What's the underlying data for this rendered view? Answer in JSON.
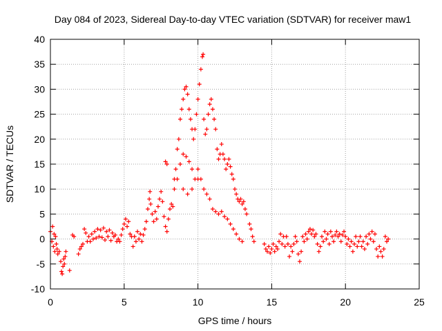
{
  "chart_data": {
    "type": "scatter",
    "title": "Day 084 of 2023, Sidereal Day-to-day VTEC variation (SDTVAR) for receiver maw1",
    "xlabel": "GPS time / hours",
    "ylabel": "SDTVAR / TECUs",
    "xlim": [
      0,
      25
    ],
    "ylim": [
      -10,
      40
    ],
    "xticks": [
      0,
      5,
      10,
      15,
      20,
      25
    ],
    "yticks": [
      -10,
      -5,
      0,
      5,
      10,
      15,
      20,
      25,
      30,
      35,
      40
    ],
    "grid": true,
    "marker": "+",
    "series": [
      {
        "name": "SDTVAR",
        "color": "#ff0000",
        "points": [
          [
            0.0,
            1.5
          ],
          [
            0.1,
            -0.5
          ],
          [
            0.15,
            2.5
          ],
          [
            0.2,
            -1.5
          ],
          [
            0.25,
            1.0
          ],
          [
            0.3,
            -2.5
          ],
          [
            0.35,
            0.5
          ],
          [
            0.4,
            -1.0
          ],
          [
            0.45,
            -2.0
          ],
          [
            0.5,
            -3.0
          ],
          [
            0.6,
            -2.5
          ],
          [
            0.7,
            -4.5
          ],
          [
            0.75,
            -6.5
          ],
          [
            0.8,
            -7.0
          ],
          [
            0.85,
            -5.5
          ],
          [
            0.9,
            -4.0
          ],
          [
            0.95,
            -5.0
          ],
          [
            1.0,
            -3.5
          ],
          [
            1.05,
            -2.5
          ],
          [
            1.3,
            -6.3
          ],
          [
            1.5,
            0.8
          ],
          [
            1.6,
            0.5
          ],
          [
            1.9,
            -3.0
          ],
          [
            2.0,
            -2.0
          ],
          [
            2.1,
            -1.5
          ],
          [
            2.2,
            -1.0
          ],
          [
            2.3,
            2.0
          ],
          [
            2.4,
            1.2
          ],
          [
            2.5,
            -0.5
          ],
          [
            2.6,
            0.5
          ],
          [
            2.7,
            -0.5
          ],
          [
            2.8,
            1.0
          ],
          [
            2.9,
            0.0
          ],
          [
            3.0,
            1.5
          ],
          [
            3.1,
            0.2
          ],
          [
            3.2,
            2.0
          ],
          [
            3.3,
            0.5
          ],
          [
            3.4,
            1.8
          ],
          [
            3.5,
            0.3
          ],
          [
            3.6,
            2.2
          ],
          [
            3.7,
            -0.2
          ],
          [
            3.8,
            1.5
          ],
          [
            3.9,
            0.5
          ],
          [
            4.0,
            1.8
          ],
          [
            4.1,
            -0.3
          ],
          [
            4.2,
            1.2
          ],
          [
            4.3,
            0.5
          ],
          [
            4.4,
            0.8
          ],
          [
            4.5,
            -0.5
          ],
          [
            4.6,
            0.0
          ],
          [
            4.7,
            -0.5
          ],
          [
            4.8,
            0.8
          ],
          [
            4.9,
            2.0
          ],
          [
            5.0,
            3.0
          ],
          [
            5.1,
            4.0
          ],
          [
            5.2,
            2.5
          ],
          [
            5.3,
            3.5
          ],
          [
            5.4,
            1.0
          ],
          [
            5.5,
            0.5
          ],
          [
            5.6,
            -1.5
          ],
          [
            5.7,
            0.5
          ],
          [
            5.8,
            -0.5
          ],
          [
            5.9,
            1.5
          ],
          [
            6.0,
            0.0
          ],
          [
            6.1,
            1.0
          ],
          [
            6.2,
            -0.5
          ],
          [
            6.3,
            0.8
          ],
          [
            6.4,
            2.0
          ],
          [
            6.5,
            3.5
          ],
          [
            6.6,
            6.0
          ],
          [
            6.7,
            8.0
          ],
          [
            6.75,
            9.5
          ],
          [
            6.8,
            7.0
          ],
          [
            6.9,
            5.0
          ],
          [
            7.0,
            3.5
          ],
          [
            7.1,
            5.5
          ],
          [
            7.2,
            4.0
          ],
          [
            7.3,
            6.5
          ],
          [
            7.4,
            8.0
          ],
          [
            7.5,
            9.5
          ],
          [
            7.6,
            7.5
          ],
          [
            7.7,
            4.5
          ],
          [
            7.8,
            2.5
          ],
          [
            7.9,
            1.5
          ],
          [
            8.0,
            4.0
          ],
          [
            8.1,
            6.0
          ],
          [
            8.2,
            7.0
          ],
          [
            8.3,
            6.5
          ],
          [
            8.4,
            12.0
          ],
          [
            8.5,
            14.0
          ],
          [
            8.6,
            18.0
          ],
          [
            8.7,
            20.0
          ],
          [
            8.8,
            24.0
          ],
          [
            8.9,
            26.0
          ],
          [
            9.0,
            28.0
          ],
          [
            9.1,
            30.0
          ],
          [
            9.2,
            30.5
          ],
          [
            9.3,
            29.0
          ],
          [
            9.4,
            26.0
          ],
          [
            9.5,
            24.0
          ],
          [
            9.6,
            22.0
          ],
          [
            9.7,
            20.0
          ],
          [
            9.8,
            22.0
          ],
          [
            9.9,
            25.0
          ],
          [
            10.0,
            28.0
          ],
          [
            10.1,
            31.0
          ],
          [
            10.2,
            34.0
          ],
          [
            10.3,
            36.5
          ],
          [
            10.35,
            37.0
          ],
          [
            10.4,
            24.0
          ],
          [
            10.5,
            21.0
          ],
          [
            10.6,
            22.0
          ],
          [
            10.7,
            25.0
          ],
          [
            10.8,
            27.0
          ],
          [
            10.9,
            28.0
          ],
          [
            11.0,
            26.0
          ],
          [
            11.1,
            24.0
          ],
          [
            11.2,
            22.0
          ],
          [
            11.3,
            18.0
          ],
          [
            11.4,
            16.0
          ],
          [
            11.5,
            17.0
          ],
          [
            11.6,
            19.0
          ],
          [
            11.7,
            17.0
          ],
          [
            11.8,
            16.0
          ],
          [
            11.9,
            14.0
          ],
          [
            12.0,
            15.0
          ],
          [
            12.1,
            16.0
          ],
          [
            12.2,
            14.5
          ],
          [
            12.3,
            13.0
          ],
          [
            12.4,
            12.0
          ],
          [
            12.5,
            10.0
          ],
          [
            12.6,
            9.0
          ],
          [
            12.7,
            8.0
          ],
          [
            12.8,
            7.5
          ],
          [
            12.9,
            8.0
          ],
          [
            13.0,
            7.0
          ],
          [
            13.1,
            7.5
          ],
          [
            13.2,
            6.0
          ],
          [
            13.3,
            5.0
          ],
          [
            13.5,
            3.0
          ],
          [
            13.6,
            2.0
          ],
          [
            13.7,
            0.5
          ],
          [
            13.8,
            -0.5
          ],
          [
            9.0,
            17.0
          ],
          [
            9.2,
            16.5
          ],
          [
            9.4,
            15.5
          ],
          [
            9.6,
            14.0
          ],
          [
            9.8,
            12.0
          ],
          [
            10.0,
            14.0
          ],
          [
            10.2,
            12.0
          ],
          [
            10.4,
            10.0
          ],
          [
            10.6,
            9.0
          ],
          [
            10.8,
            8.0
          ],
          [
            11.0,
            6.0
          ],
          [
            11.2,
            5.5
          ],
          [
            11.4,
            5.0
          ],
          [
            11.6,
            5.5
          ],
          [
            11.8,
            4.5
          ],
          [
            12.0,
            4.0
          ],
          [
            12.2,
            3.0
          ],
          [
            12.4,
            2.0
          ],
          [
            12.6,
            1.0
          ],
          [
            12.8,
            0.0
          ],
          [
            13.0,
            -0.5
          ],
          [
            8.8,
            15.0
          ],
          [
            8.6,
            12.0
          ],
          [
            8.4,
            10.0
          ],
          [
            7.8,
            15.5
          ],
          [
            7.9,
            15.0
          ],
          [
            9.0,
            10.0
          ],
          [
            9.3,
            9.0
          ],
          [
            9.6,
            10.0
          ],
          [
            10.0,
            12.0
          ],
          [
            14.5,
            -1.0
          ],
          [
            14.6,
            -2.0
          ],
          [
            14.7,
            -2.5
          ],
          [
            14.8,
            -1.5
          ],
          [
            14.9,
            -2.8
          ],
          [
            15.0,
            -2.0
          ],
          [
            15.1,
            -1.0
          ],
          [
            15.2,
            -2.5
          ],
          [
            15.3,
            -1.5
          ],
          [
            15.4,
            -2.0
          ],
          [
            15.5,
            -0.5
          ],
          [
            15.6,
            1.0
          ],
          [
            15.7,
            -1.0
          ],
          [
            15.8,
            0.5
          ],
          [
            15.9,
            -1.5
          ],
          [
            16.0,
            0.5
          ],
          [
            16.1,
            -1.0
          ],
          [
            16.2,
            -3.5
          ],
          [
            16.3,
            -1.5
          ],
          [
            16.4,
            -2.5
          ],
          [
            16.5,
            -1.0
          ],
          [
            16.6,
            0.5
          ],
          [
            16.7,
            -0.5
          ],
          [
            16.8,
            -3.0
          ],
          [
            16.9,
            -4.5
          ],
          [
            17.0,
            -2.5
          ],
          [
            17.1,
            0.5
          ],
          [
            17.2,
            -0.5
          ],
          [
            17.3,
            1.0
          ],
          [
            17.4,
            0.0
          ],
          [
            17.5,
            1.5
          ],
          [
            17.6,
            2.0
          ],
          [
            17.7,
            1.0
          ],
          [
            17.8,
            1.8
          ],
          [
            17.9,
            0.5
          ],
          [
            18.0,
            1.0
          ],
          [
            18.1,
            -1.0
          ],
          [
            18.2,
            -2.5
          ],
          [
            18.3,
            -1.5
          ],
          [
            18.4,
            0.5
          ],
          [
            18.5,
            -0.5
          ],
          [
            18.6,
            1.5
          ],
          [
            18.7,
            0.0
          ],
          [
            18.8,
            1.0
          ],
          [
            18.9,
            -1.0
          ],
          [
            19.0,
            1.5
          ],
          [
            19.1,
            0.5
          ],
          [
            19.2,
            -0.5
          ],
          [
            19.3,
            0.8
          ],
          [
            19.4,
            1.5
          ],
          [
            19.5,
            0.5
          ],
          [
            19.6,
            1.0
          ],
          [
            19.7,
            -0.5
          ],
          [
            19.8,
            0.8
          ],
          [
            19.9,
            1.5
          ],
          [
            20.0,
            0.5
          ],
          [
            20.1,
            -1.0
          ],
          [
            20.2,
            0.0
          ],
          [
            20.3,
            -1.5
          ],
          [
            20.4,
            -0.5
          ],
          [
            20.5,
            -2.5
          ],
          [
            20.6,
            -1.0
          ],
          [
            20.7,
            0.5
          ],
          [
            20.8,
            -1.5
          ],
          [
            20.9,
            -0.5
          ],
          [
            21.0,
            0.5
          ],
          [
            21.1,
            -1.5
          ],
          [
            21.2,
            -0.5
          ],
          [
            21.3,
            -2.0
          ],
          [
            21.4,
            0.5
          ],
          [
            21.5,
            -1.0
          ],
          [
            21.6,
            1.0
          ],
          [
            21.7,
            0.0
          ],
          [
            21.8,
            1.5
          ],
          [
            21.9,
            -0.5
          ],
          [
            22.0,
            1.0
          ],
          [
            22.1,
            -2.0
          ],
          [
            22.2,
            -3.5
          ],
          [
            22.3,
            -1.5
          ],
          [
            22.4,
            -2.5
          ],
          [
            22.5,
            -3.5
          ],
          [
            22.6,
            -2.0
          ],
          [
            22.7,
            0.5
          ],
          [
            22.8,
            -0.5
          ],
          [
            22.9,
            0.0
          ]
        ]
      }
    ]
  }
}
